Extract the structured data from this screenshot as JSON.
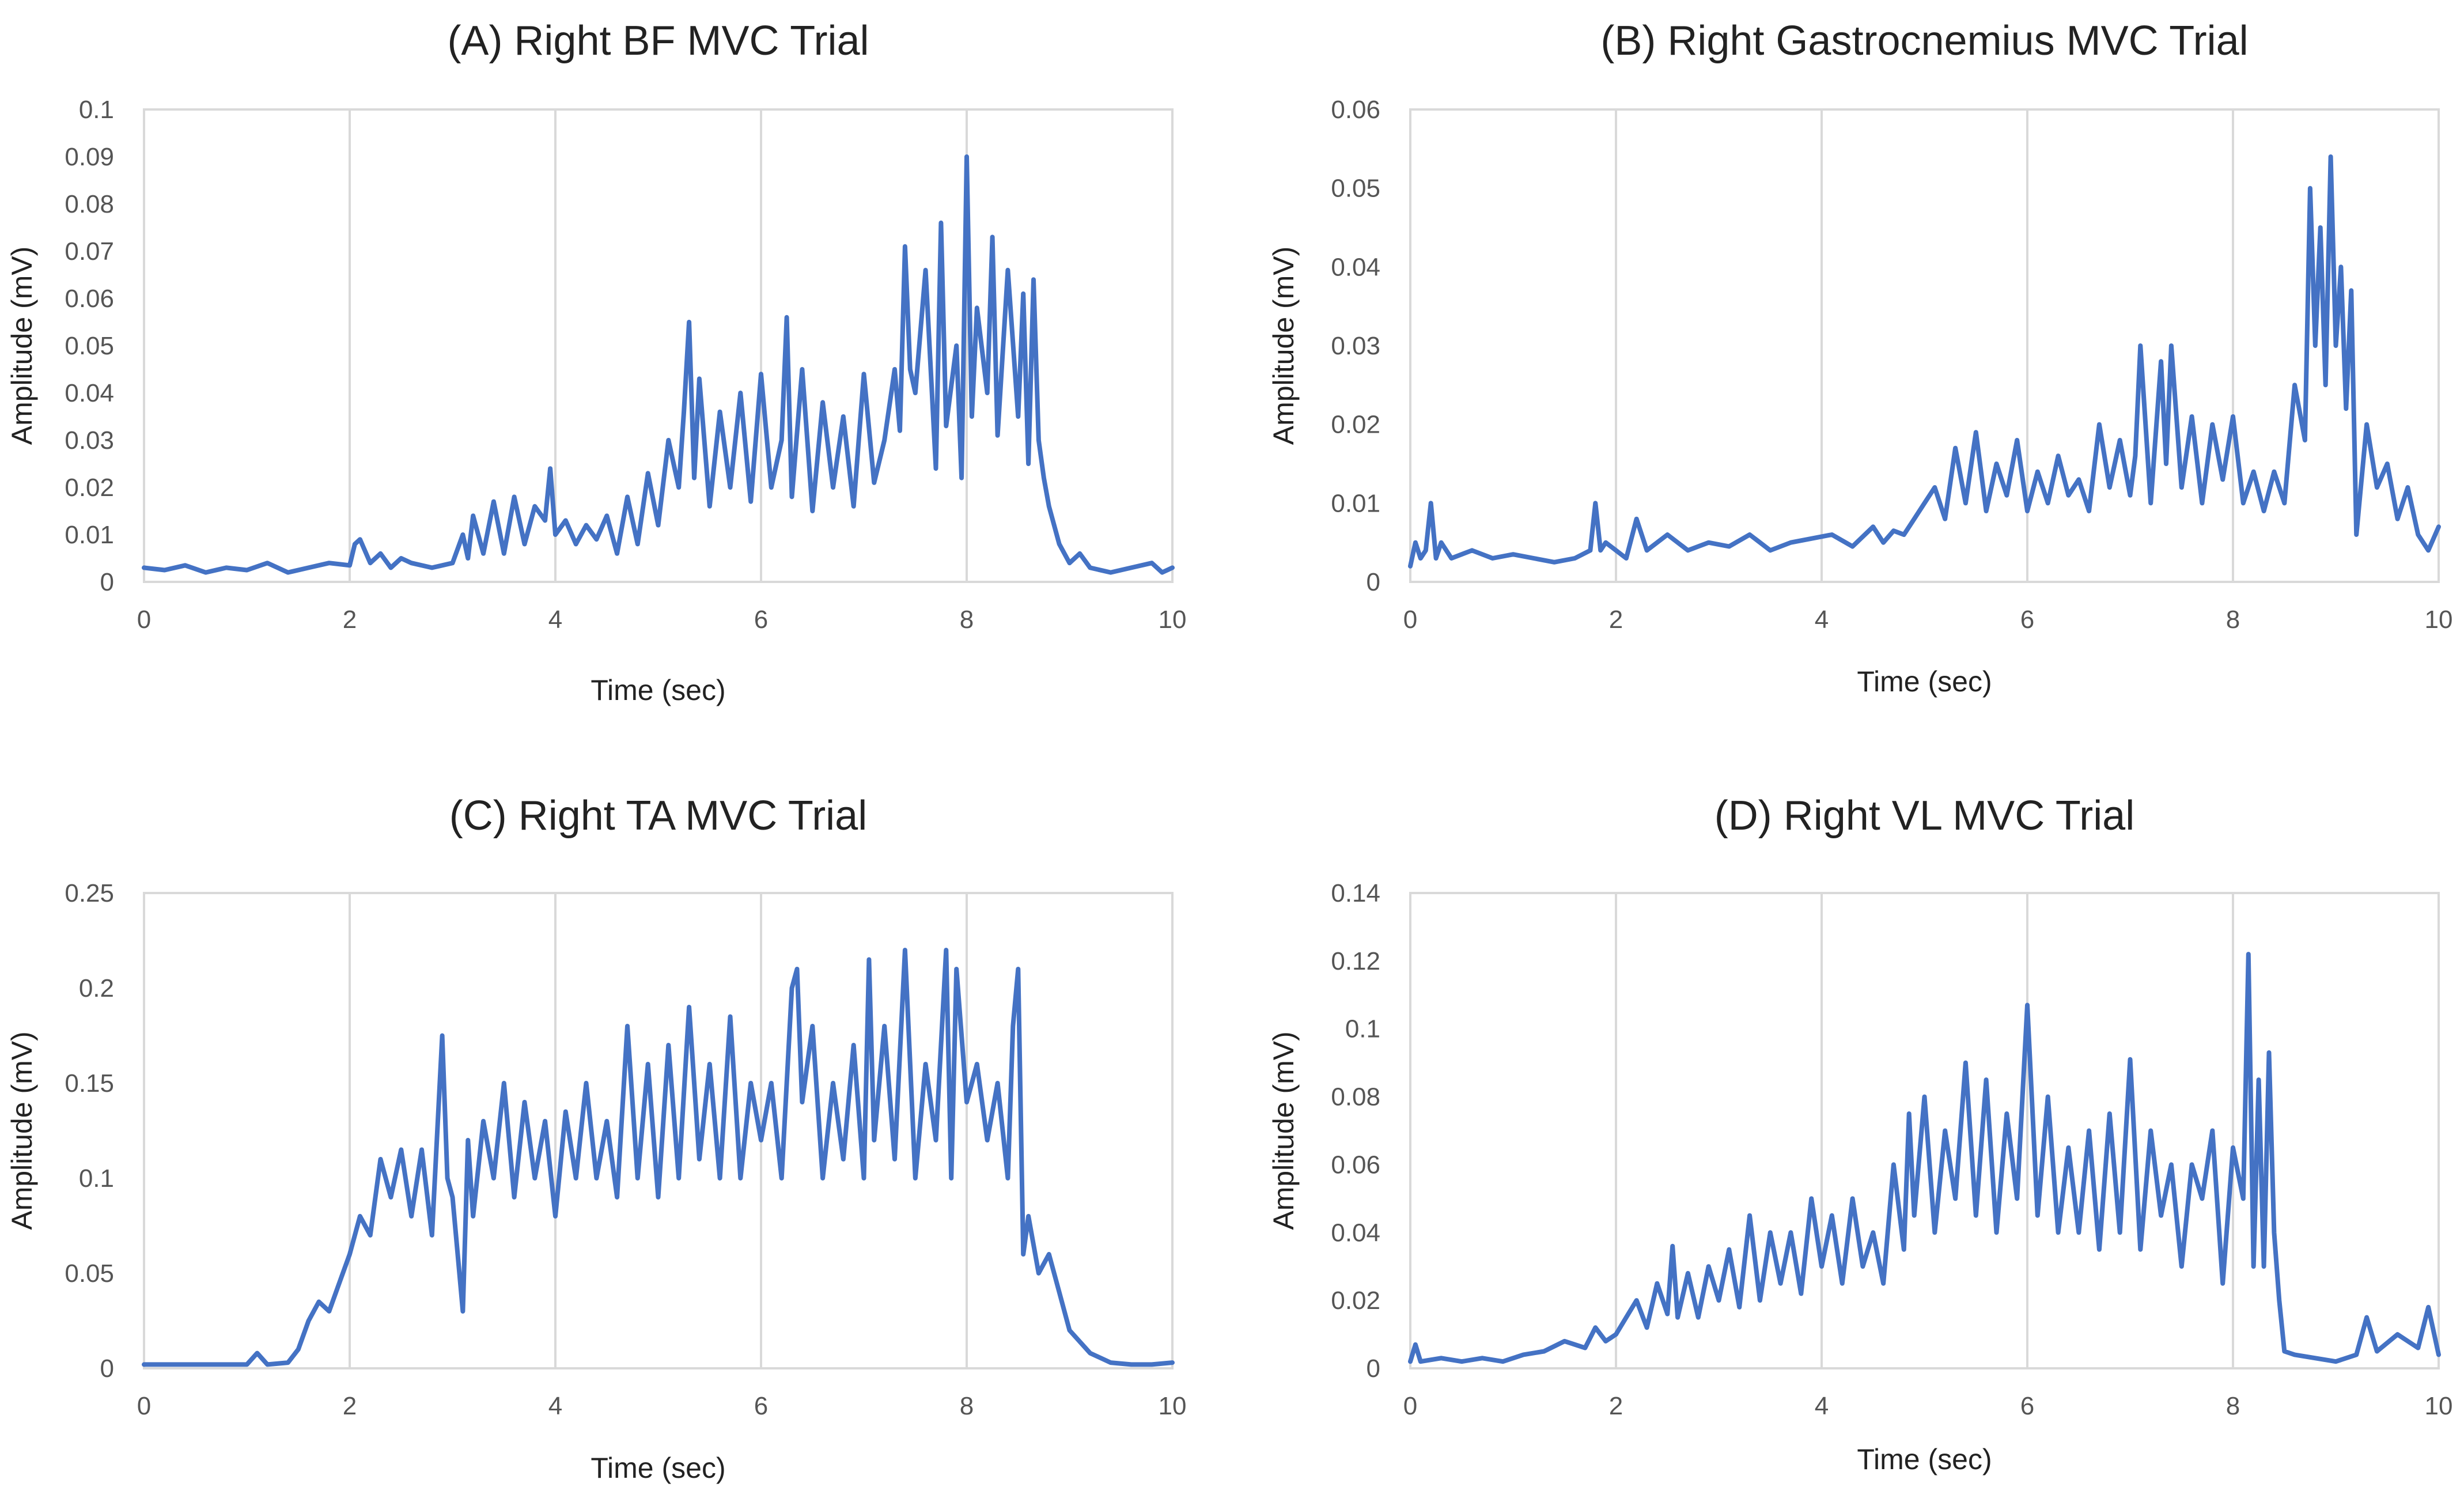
{
  "chart_data": [
    {
      "id": "A",
      "type": "line",
      "title": "(A) Right BF MVC Trial",
      "xlabel": "Time (sec)",
      "ylabel": "Amplitude (mV)",
      "xlim": [
        0,
        10
      ],
      "ylim": [
        0,
        0.1
      ],
      "xticks": [
        0,
        2,
        4,
        6,
        8,
        10
      ],
      "xtick_labels": [
        "0",
        "2",
        "4",
        "6",
        "8",
        "10"
      ],
      "yticks": [
        0,
        0.01,
        0.02,
        0.03,
        0.04,
        0.05,
        0.06,
        0.07,
        0.08,
        0.09,
        0.1
      ],
      "ytick_labels": [
        "0",
        "0.01",
        "0.02",
        "0.03",
        "0.04",
        "0.05",
        "0.06",
        "0.07",
        "0.08",
        "0.09",
        "0.1"
      ],
      "grid": "vertical",
      "color": "#4472c4",
      "series": [
        {
          "name": "Right BF",
          "x": [
            0,
            0.2,
            0.4,
            0.6,
            0.8,
            1.0,
            1.2,
            1.4,
            1.6,
            1.8,
            2.0,
            2.05,
            2.1,
            2.2,
            2.3,
            2.4,
            2.5,
            2.6,
            2.8,
            3.0,
            3.1,
            3.15,
            3.2,
            3.3,
            3.4,
            3.5,
            3.6,
            3.7,
            3.8,
            3.9,
            3.95,
            4.0,
            4.1,
            4.2,
            4.3,
            4.4,
            4.5,
            4.6,
            4.7,
            4.8,
            4.9,
            5.0,
            5.1,
            5.2,
            5.25,
            5.3,
            5.35,
            5.4,
            5.5,
            5.6,
            5.7,
            5.8,
            5.9,
            6.0,
            6.1,
            6.2,
            6.25,
            6.3,
            6.4,
            6.5,
            6.6,
            6.7,
            6.8,
            6.9,
            7.0,
            7.1,
            7.2,
            7.3,
            7.35,
            7.4,
            7.45,
            7.5,
            7.6,
            7.7,
            7.75,
            7.8,
            7.9,
            7.95,
            8.0,
            8.05,
            8.1,
            8.2,
            8.25,
            8.3,
            8.4,
            8.5,
            8.55,
            8.6,
            8.65,
            8.7,
            8.75,
            8.8,
            8.9,
            9.0,
            9.1,
            9.2,
            9.4,
            9.6,
            9.8,
            9.9,
            10.0
          ],
          "y": [
            0.003,
            0.0025,
            0.0035,
            0.002,
            0.003,
            0.0025,
            0.004,
            0.002,
            0.003,
            0.004,
            0.0035,
            0.008,
            0.009,
            0.004,
            0.006,
            0.003,
            0.005,
            0.004,
            0.003,
            0.004,
            0.01,
            0.005,
            0.014,
            0.006,
            0.017,
            0.006,
            0.018,
            0.008,
            0.016,
            0.013,
            0.024,
            0.01,
            0.013,
            0.008,
            0.012,
            0.009,
            0.014,
            0.006,
            0.018,
            0.008,
            0.023,
            0.012,
            0.03,
            0.02,
            0.036,
            0.055,
            0.022,
            0.043,
            0.016,
            0.036,
            0.02,
            0.04,
            0.017,
            0.044,
            0.02,
            0.03,
            0.056,
            0.018,
            0.045,
            0.015,
            0.038,
            0.02,
            0.035,
            0.016,
            0.044,
            0.021,
            0.03,
            0.045,
            0.032,
            0.071,
            0.045,
            0.04,
            0.066,
            0.024,
            0.076,
            0.033,
            0.05,
            0.022,
            0.09,
            0.035,
            0.058,
            0.04,
            0.073,
            0.031,
            0.066,
            0.035,
            0.061,
            0.025,
            0.064,
            0.03,
            0.022,
            0.016,
            0.008,
            0.004,
            0.006,
            0.003,
            0.002,
            0.003,
            0.004,
            0.002,
            0.003
          ]
        }
      ]
    },
    {
      "id": "B",
      "type": "line",
      "title": "(B) Right Gastrocnemius MVC Trial",
      "xlabel": "Time (sec)",
      "ylabel": "Amplitude (mV)",
      "xlim": [
        0,
        10
      ],
      "ylim": [
        0,
        0.06
      ],
      "xticks": [
        0,
        2,
        4,
        6,
        8,
        10
      ],
      "xtick_labels": [
        "0",
        "2",
        "4",
        "6",
        "8",
        "10"
      ],
      "yticks": [
        0,
        0.01,
        0.02,
        0.03,
        0.04,
        0.05,
        0.06
      ],
      "ytick_labels": [
        "0",
        "0.01",
        "0.02",
        "0.03",
        "0.04",
        "0.05",
        "0.06"
      ],
      "grid": "vertical",
      "color": "#4472c4",
      "series": [
        {
          "name": "Right Gastrocnemius",
          "x": [
            0,
            0.05,
            0.1,
            0.15,
            0.2,
            0.25,
            0.3,
            0.4,
            0.6,
            0.8,
            1.0,
            1.2,
            1.4,
            1.6,
            1.75,
            1.8,
            1.85,
            1.9,
            2.0,
            2.1,
            2.2,
            2.3,
            2.5,
            2.7,
            2.9,
            3.1,
            3.3,
            3.5,
            3.7,
            3.9,
            4.1,
            4.3,
            4.5,
            4.6,
            4.7,
            4.8,
            4.9,
            5.0,
            5.1,
            5.2,
            5.3,
            5.4,
            5.5,
            5.6,
            5.7,
            5.8,
            5.9,
            6.0,
            6.1,
            6.2,
            6.3,
            6.4,
            6.5,
            6.6,
            6.7,
            6.8,
            6.9,
            7.0,
            7.05,
            7.1,
            7.2,
            7.3,
            7.35,
            7.4,
            7.5,
            7.6,
            7.7,
            7.8,
            7.9,
            8.0,
            8.1,
            8.2,
            8.3,
            8.4,
            8.5,
            8.6,
            8.7,
            8.75,
            8.8,
            8.85,
            8.9,
            8.95,
            9.0,
            9.05,
            9.1,
            9.15,
            9.2,
            9.3,
            9.4,
            9.5,
            9.6,
            9.7,
            9.8,
            9.9,
            10.0
          ],
          "y": [
            0.002,
            0.005,
            0.003,
            0.004,
            0.01,
            0.003,
            0.005,
            0.003,
            0.004,
            0.003,
            0.0035,
            0.003,
            0.0025,
            0.003,
            0.004,
            0.01,
            0.004,
            0.005,
            0.004,
            0.003,
            0.008,
            0.004,
            0.006,
            0.004,
            0.005,
            0.0045,
            0.006,
            0.004,
            0.005,
            0.0055,
            0.006,
            0.0045,
            0.007,
            0.005,
            0.0065,
            0.006,
            0.008,
            0.01,
            0.012,
            0.008,
            0.017,
            0.01,
            0.019,
            0.009,
            0.015,
            0.011,
            0.018,
            0.009,
            0.014,
            0.01,
            0.016,
            0.011,
            0.013,
            0.009,
            0.02,
            0.012,
            0.018,
            0.011,
            0.016,
            0.03,
            0.01,
            0.028,
            0.015,
            0.03,
            0.012,
            0.021,
            0.01,
            0.02,
            0.013,
            0.021,
            0.01,
            0.014,
            0.009,
            0.014,
            0.01,
            0.025,
            0.018,
            0.05,
            0.03,
            0.045,
            0.025,
            0.054,
            0.03,
            0.04,
            0.022,
            0.037,
            0.006,
            0.02,
            0.012,
            0.015,
            0.008,
            0.012,
            0.006,
            0.004,
            0.007
          ]
        }
      ]
    },
    {
      "id": "C",
      "type": "line",
      "title": "(C) Right TA MVC Trial",
      "xlabel": "Time (sec)",
      "ylabel": "Amplitude (mV)",
      "xlim": [
        0,
        10
      ],
      "ylim": [
        0,
        0.25
      ],
      "xticks": [
        0,
        2,
        4,
        6,
        8,
        10
      ],
      "xtick_labels": [
        "0",
        "2",
        "4",
        "6",
        "8",
        "10"
      ],
      "yticks": [
        0,
        0.05,
        0.1,
        0.15,
        0.2,
        0.25
      ],
      "ytick_labels": [
        "0",
        "0.05",
        "0.1",
        "0.15",
        "0.2",
        "0.25"
      ],
      "grid": "vertical",
      "color": "#4472c4",
      "series": [
        {
          "name": "Right TA",
          "x": [
            0,
            0.5,
            1.0,
            1.1,
            1.2,
            1.4,
            1.5,
            1.6,
            1.7,
            1.8,
            1.9,
            2.0,
            2.1,
            2.2,
            2.3,
            2.4,
            2.5,
            2.6,
            2.7,
            2.8,
            2.9,
            2.95,
            3.0,
            3.1,
            3.15,
            3.2,
            3.3,
            3.4,
            3.5,
            3.6,
            3.7,
            3.8,
            3.9,
            4.0,
            4.1,
            4.2,
            4.3,
            4.4,
            4.5,
            4.6,
            4.7,
            4.8,
            4.9,
            5.0,
            5.1,
            5.2,
            5.3,
            5.4,
            5.5,
            5.6,
            5.7,
            5.8,
            5.9,
            6.0,
            6.1,
            6.2,
            6.3,
            6.35,
            6.4,
            6.5,
            6.6,
            6.7,
            6.8,
            6.9,
            7.0,
            7.05,
            7.1,
            7.2,
            7.3,
            7.4,
            7.5,
            7.6,
            7.7,
            7.8,
            7.85,
            7.9,
            8.0,
            8.1,
            8.2,
            8.3,
            8.4,
            8.45,
            8.5,
            8.55,
            8.6,
            8.7,
            8.8,
            8.9,
            9.0,
            9.2,
            9.4,
            9.6,
            9.8,
            10.0
          ],
          "y": [
            0.002,
            0.002,
            0.002,
            0.008,
            0.002,
            0.003,
            0.01,
            0.025,
            0.035,
            0.03,
            0.045,
            0.06,
            0.08,
            0.07,
            0.11,
            0.09,
            0.115,
            0.08,
            0.115,
            0.07,
            0.175,
            0.1,
            0.09,
            0.03,
            0.12,
            0.08,
            0.13,
            0.1,
            0.15,
            0.09,
            0.14,
            0.1,
            0.13,
            0.08,
            0.135,
            0.1,
            0.15,
            0.1,
            0.13,
            0.09,
            0.18,
            0.1,
            0.16,
            0.09,
            0.17,
            0.1,
            0.19,
            0.11,
            0.16,
            0.1,
            0.185,
            0.1,
            0.15,
            0.12,
            0.15,
            0.1,
            0.2,
            0.21,
            0.14,
            0.18,
            0.1,
            0.15,
            0.11,
            0.17,
            0.1,
            0.215,
            0.12,
            0.18,
            0.11,
            0.22,
            0.1,
            0.16,
            0.12,
            0.22,
            0.1,
            0.21,
            0.14,
            0.16,
            0.12,
            0.15,
            0.1,
            0.18,
            0.21,
            0.06,
            0.08,
            0.05,
            0.06,
            0.04,
            0.02,
            0.008,
            0.003,
            0.002,
            0.002,
            0.003
          ]
        }
      ]
    },
    {
      "id": "D",
      "type": "line",
      "title": "(D) Right VL MVC Trial",
      "xlabel": "Time (sec)",
      "ylabel": "Amplitude (mV)",
      "xlim": [
        0,
        10
      ],
      "ylim": [
        0,
        0.14
      ],
      "xticks": [
        0,
        2,
        4,
        6,
        8,
        10
      ],
      "xtick_labels": [
        "0",
        "2",
        "4",
        "6",
        "8",
        "10"
      ],
      "yticks": [
        0,
        0.02,
        0.04,
        0.06,
        0.08,
        0.1,
        0.12,
        0.14
      ],
      "ytick_labels": [
        "0",
        "0.02",
        "0.04",
        "0.06",
        "0.08",
        "0.1",
        "0.12",
        "0.14"
      ],
      "grid": "vertical",
      "color": "#4472c4",
      "series": [
        {
          "name": "Right VL",
          "x": [
            0,
            0.05,
            0.1,
            0.3,
            0.5,
            0.7,
            0.9,
            1.1,
            1.3,
            1.5,
            1.7,
            1.8,
            1.9,
            2.0,
            2.1,
            2.2,
            2.3,
            2.4,
            2.5,
            2.55,
            2.6,
            2.7,
            2.8,
            2.9,
            3.0,
            3.1,
            3.2,
            3.3,
            3.4,
            3.5,
            3.6,
            3.7,
            3.8,
            3.9,
            4.0,
            4.1,
            4.2,
            4.3,
            4.4,
            4.5,
            4.6,
            4.7,
            4.8,
            4.85,
            4.9,
            5.0,
            5.1,
            5.2,
            5.3,
            5.4,
            5.5,
            5.6,
            5.7,
            5.8,
            5.9,
            6.0,
            6.1,
            6.2,
            6.3,
            6.4,
            6.5,
            6.6,
            6.7,
            6.8,
            6.9,
            7.0,
            7.1,
            7.2,
            7.3,
            7.4,
            7.5,
            7.6,
            7.7,
            7.8,
            7.9,
            8.0,
            8.1,
            8.15,
            8.2,
            8.25,
            8.3,
            8.35,
            8.4,
            8.45,
            8.5,
            8.6,
            8.8,
            9.0,
            9.2,
            9.3,
            9.4,
            9.6,
            9.8,
            9.9,
            10.0
          ],
          "y": [
            0.002,
            0.007,
            0.002,
            0.003,
            0.002,
            0.003,
            0.002,
            0.004,
            0.005,
            0.008,
            0.006,
            0.012,
            0.008,
            0.01,
            0.015,
            0.02,
            0.012,
            0.025,
            0.016,
            0.036,
            0.015,
            0.028,
            0.015,
            0.03,
            0.02,
            0.035,
            0.018,
            0.045,
            0.02,
            0.04,
            0.025,
            0.04,
            0.022,
            0.05,
            0.03,
            0.045,
            0.025,
            0.05,
            0.03,
            0.04,
            0.025,
            0.06,
            0.035,
            0.075,
            0.045,
            0.08,
            0.04,
            0.07,
            0.05,
            0.09,
            0.045,
            0.085,
            0.04,
            0.075,
            0.05,
            0.107,
            0.045,
            0.08,
            0.04,
            0.065,
            0.04,
            0.07,
            0.035,
            0.075,
            0.04,
            0.091,
            0.035,
            0.07,
            0.045,
            0.06,
            0.03,
            0.06,
            0.05,
            0.07,
            0.025,
            0.065,
            0.05,
            0.122,
            0.03,
            0.085,
            0.03,
            0.093,
            0.04,
            0.02,
            0.005,
            0.004,
            0.003,
            0.002,
            0.004,
            0.015,
            0.005,
            0.01,
            0.006,
            0.018,
            0.004
          ]
        }
      ]
    }
  ]
}
